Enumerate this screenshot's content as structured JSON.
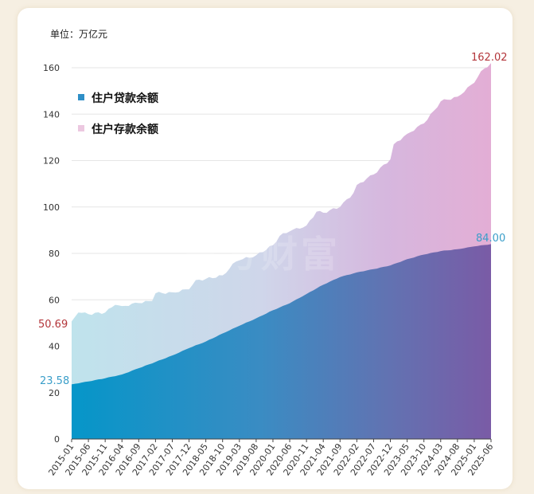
{
  "chart_data": {
    "type": "area",
    "unit_label": "单位：万亿元",
    "watermark": "东方财富",
    "ylim": [
      0,
      160
    ],
    "yticks": [
      0,
      20,
      40,
      60,
      80,
      100,
      120,
      140,
      160
    ],
    "x_tick_labels": [
      "2015-01",
      "2015-06",
      "2015-11",
      "2016-04",
      "2016-09",
      "2017-02",
      "2017-07",
      "2017-12",
      "2018-05",
      "2018-10",
      "2019-03",
      "2019-08",
      "2020-01",
      "2020-06",
      "2020-11",
      "2021-04",
      "2021-09",
      "2022-02",
      "2022-07",
      "2022-12",
      "2023-05",
      "2023-10",
      "2024-03",
      "2024-08",
      "2025-01",
      "2025-06"
    ],
    "x_start": "2015-01",
    "x_end": "2025-06",
    "grid": true,
    "legend_position": "top-left",
    "series": [
      {
        "name": "住户贷款余额",
        "color": "#2f8fc7",
        "start_label": "23.58",
        "end_label": "84.00",
        "points": [
          [
            "2015-01",
            23.58
          ],
          [
            "2015-06",
            24.8
          ],
          [
            "2015-11",
            26.2
          ],
          [
            "2016-04",
            27.8
          ],
          [
            "2016-09",
            30.5
          ],
          [
            "2017-02",
            33.2
          ],
          [
            "2017-07",
            36.0
          ],
          [
            "2017-12",
            39.2
          ],
          [
            "2018-05",
            42.0
          ],
          [
            "2018-10",
            45.5
          ],
          [
            "2019-03",
            48.8
          ],
          [
            "2019-08",
            52.0
          ],
          [
            "2020-01",
            55.5
          ],
          [
            "2020-06",
            58.5
          ],
          [
            "2020-11",
            62.5
          ],
          [
            "2021-04",
            66.5
          ],
          [
            "2021-09",
            69.8
          ],
          [
            "2022-02",
            71.8
          ],
          [
            "2022-07",
            73.2
          ],
          [
            "2022-12",
            74.8
          ],
          [
            "2023-05",
            77.5
          ],
          [
            "2023-10",
            79.5
          ],
          [
            "2024-03",
            81.0
          ],
          [
            "2024-08",
            81.8
          ],
          [
            "2025-01",
            83.0
          ],
          [
            "2025-06",
            84.0
          ]
        ]
      },
      {
        "name": "住户存款余额",
        "color": "#e8c6dd",
        "start_label": "50.69",
        "end_label": "162.02",
        "points": [
          [
            "2015-01",
            50.69
          ],
          [
            "2015-03",
            54.5
          ],
          [
            "2015-06",
            53.8
          ],
          [
            "2015-11",
            54.5
          ],
          [
            "2016-02",
            57.8
          ],
          [
            "2016-04",
            57.3
          ],
          [
            "2016-09",
            58.6
          ],
          [
            "2017-01",
            59.5
          ],
          [
            "2017-02",
            62.8
          ],
          [
            "2017-07",
            63.2
          ],
          [
            "2017-12",
            64.5
          ],
          [
            "2018-02",
            68.5
          ],
          [
            "2018-05",
            69.0
          ],
          [
            "2018-10",
            70.5
          ],
          [
            "2019-02",
            76.5
          ],
          [
            "2019-03",
            77.0
          ],
          [
            "2019-08",
            79.2
          ],
          [
            "2020-01",
            83.5
          ],
          [
            "2020-03",
            87.5
          ],
          [
            "2020-06",
            89.5
          ],
          [
            "2020-11",
            92.0
          ],
          [
            "2021-02",
            98.0
          ],
          [
            "2021-04",
            97.5
          ],
          [
            "2021-09",
            100.0
          ],
          [
            "2022-01",
            106.0
          ],
          [
            "2022-02",
            109.5
          ],
          [
            "2022-07",
            114.0
          ],
          [
            "2022-12",
            120.5
          ],
          [
            "2023-01",
            127.0
          ],
          [
            "2023-05",
            131.5
          ],
          [
            "2023-10",
            136.0
          ],
          [
            "2024-01",
            141.5
          ],
          [
            "2024-03",
            145.5
          ],
          [
            "2024-08",
            147.5
          ],
          [
            "2025-01",
            153.5
          ],
          [
            "2025-03",
            158.5
          ],
          [
            "2025-06",
            162.02
          ]
        ]
      }
    ]
  }
}
